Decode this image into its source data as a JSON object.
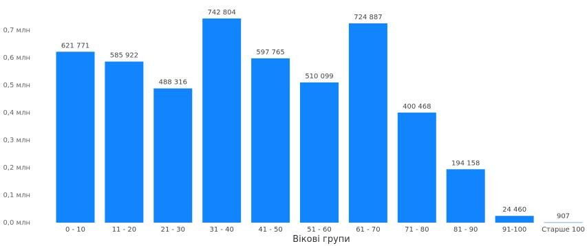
{
  "chart_data": {
    "type": "bar",
    "title": "",
    "xlabel": "Вікові групи",
    "ylabel": "",
    "ylim": [
      0,
      0.8
    ],
    "yticks": [
      0,
      0.1,
      0.2,
      0.3,
      0.4,
      0.5,
      0.6,
      0.7
    ],
    "ytick_labels": [
      "0,0 млн",
      "0,1 млн",
      "0,2 млн",
      "0,3 млн",
      "0,4 млн",
      "0,5 млн",
      "0,6 млн",
      "0,7 млн"
    ],
    "grid": false,
    "bar_color": "#1185FE",
    "categories": [
      "0 - 10",
      "11 - 20",
      "21 - 30",
      "31 - 40",
      "41 - 50",
      "51 - 60",
      "61 - 70",
      "71 - 80",
      "81 - 90",
      "91-100",
      "Старше 100"
    ],
    "values": [
      621771,
      585922,
      488316,
      742804,
      597765,
      510099,
      724887,
      400468,
      194158,
      24460,
      907
    ],
    "value_labels": [
      "621 771",
      "585 922",
      "488 316",
      "742 804",
      "597 765",
      "510 099",
      "724 887",
      "400 468",
      "194 158",
      "24 460",
      "907"
    ]
  }
}
